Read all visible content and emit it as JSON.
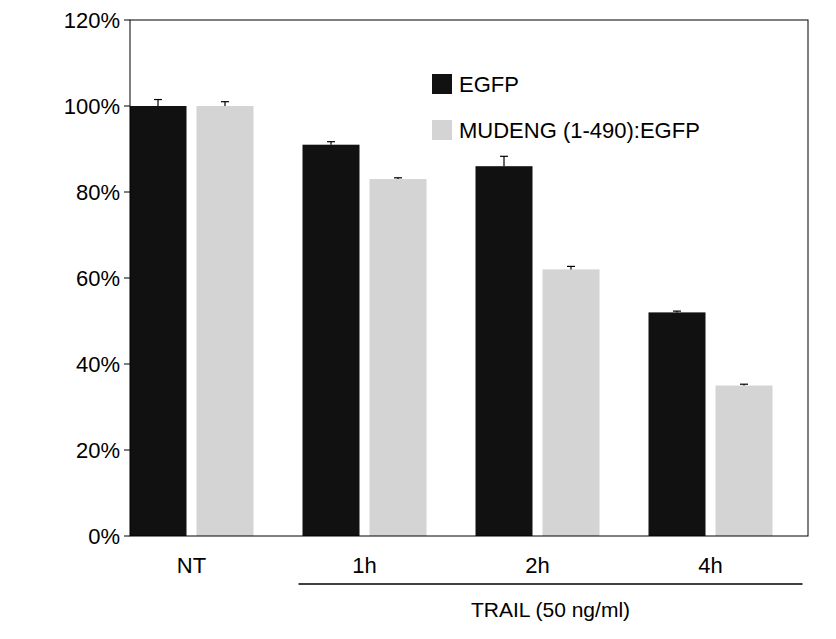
{
  "chart_data": {
    "type": "bar",
    "categories": [
      "NT",
      "1h",
      "2h",
      "4h"
    ],
    "series": [
      {
        "name": "EGFP",
        "color": "#111111",
        "values": [
          100,
          91,
          86,
          52
        ],
        "errors": [
          1.5,
          0.7,
          2.3,
          0.3
        ]
      },
      {
        "name": "MUDENG (1-490):EGFP",
        "color": "#d4d4d4",
        "values": [
          100,
          83,
          62,
          35
        ],
        "errors": [
          1,
          0.3,
          0.7,
          0.3
        ]
      }
    ],
    "ylim": [
      0,
      120
    ],
    "yticks": [
      {
        "value": 0,
        "label": "0%"
      },
      {
        "value": 20,
        "label": "20%"
      },
      {
        "value": 40,
        "label": "40%"
      },
      {
        "value": 60,
        "label": "60%"
      },
      {
        "value": 80,
        "label": "80%"
      },
      {
        "value": 100,
        "label": "100%"
      },
      {
        "value": 120,
        "label": "120%"
      }
    ],
    "grid": false,
    "legend": "top-right",
    "annotations": [
      {
        "text": "TRAIL (50 ng/ml)",
        "span": [
          "1h",
          "4h"
        ]
      }
    ]
  }
}
